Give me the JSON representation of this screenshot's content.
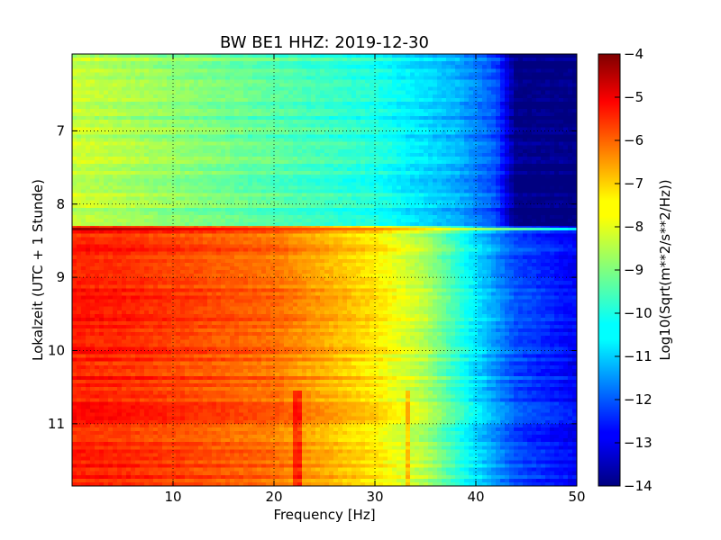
{
  "chart_data": {
    "type": "heatmap",
    "title": "BW BE1 HHZ: 2019-12-30",
    "xlabel": "Frequency [Hz]",
    "ylabel": "Lokalzeit (UTC + 1 Stunde)",
    "xlim": [
      0,
      50
    ],
    "ylim": [
      5.95,
      11.85
    ],
    "y_inverted": true,
    "x_ticks": [
      10,
      20,
      30,
      40,
      50
    ],
    "y_ticks": [
      7,
      8,
      9,
      10,
      11
    ],
    "grid": true,
    "colormap": "jet",
    "colorbar": {
      "label": "Log10(Sqrt(m**2/s**2/Hz))",
      "range": [
        -14,
        -4
      ],
      "ticks": [
        -4,
        -5,
        -6,
        -7,
        -8,
        -9,
        -10,
        -11,
        -12,
        -13,
        -14
      ]
    },
    "segments": [
      {
        "time_range": [
          5.95,
          8.32
        ],
        "value_at_low_freq": -8.3,
        "value_at_30hz": -10.0,
        "value_at_42hz": -12.0,
        "value_above_44hz": -14.0
      },
      {
        "time_range": [
          8.32,
          8.36
        ],
        "value_at_low_freq": -4.2,
        "value_at_30hz": -6.5,
        "value_at_50hz": -10.5
      },
      {
        "time_range": [
          8.36,
          11.85
        ],
        "value_at_low_freq": -5.5,
        "value_at_30hz": -7.5,
        "value_at_40hz": -10.5,
        "value_at_50hz": -12.8
      }
    ],
    "spectral_lines_hz": [
      22.3,
      33.3
    ]
  }
}
